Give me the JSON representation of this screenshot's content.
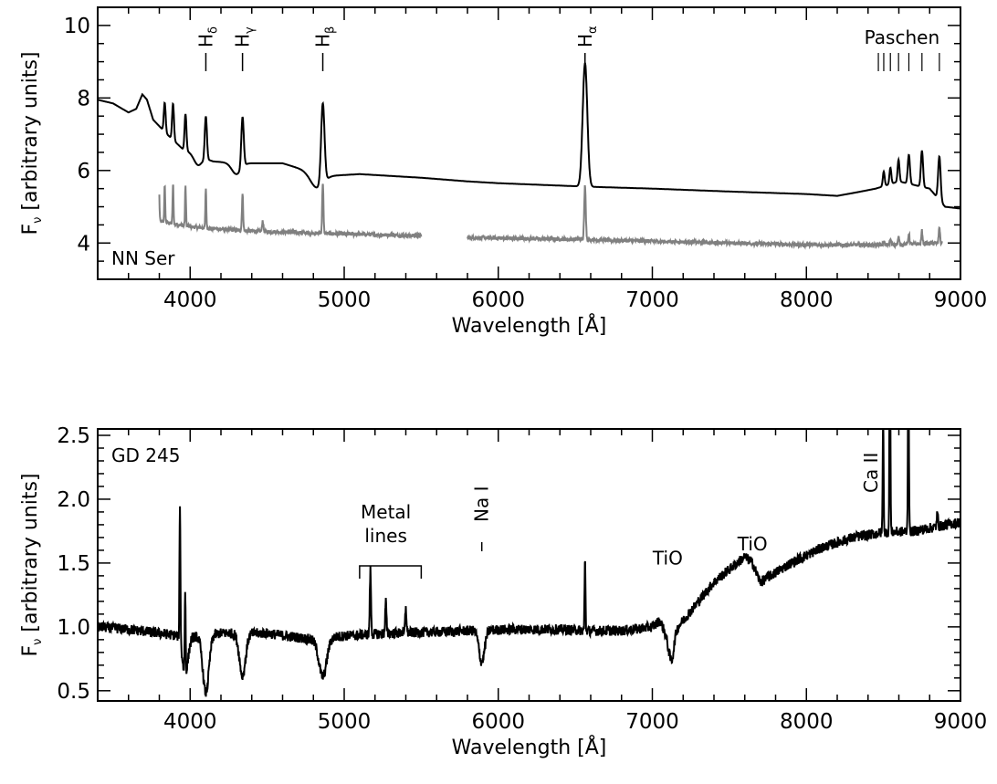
{
  "chart_data": [
    {
      "type": "line",
      "xlabel": "Wavelength [Å]",
      "ylabel_main": "F",
      "ylabel_sub": "ν",
      "ylabel_rest": " [arbitrary units]",
      "xlim": [
        3400,
        9000
      ],
      "ylim": [
        3,
        10.5
      ],
      "x_ticks": [
        4000,
        5000,
        6000,
        7000,
        8000,
        9000
      ],
      "y_ticks": [
        4,
        6,
        8,
        10
      ],
      "object_label": "NN Ser",
      "line_markers": [
        {
          "base": "H",
          "sub": "δ",
          "x": 4102
        },
        {
          "base": "H",
          "sub": "γ",
          "x": 4340
        },
        {
          "base": "H",
          "sub": "β",
          "x": 4861
        },
        {
          "base": "H",
          "sub": "α",
          "x": 6563
        }
      ],
      "series_label_paschen": "Paschen",
      "paschen_lines": [
        8467,
        8502,
        8545,
        8598,
        8665,
        8750,
        8863
      ],
      "series": [
        {
          "color": "#000000",
          "continuum": [
            [
              3400,
              7.95
            ],
            [
              3500,
              7.85
            ],
            [
              3600,
              7.6
            ],
            [
              3650,
              7.7
            ],
            [
              3690,
              8.1
            ],
            [
              3720,
              7.95
            ],
            [
              3760,
              7.4
            ],
            [
              3850,
              7.0
            ],
            [
              3950,
              6.6
            ],
            [
              4050,
              6.4
            ],
            [
              4150,
              6.25
            ],
            [
              4300,
              6.2
            ],
            [
              4450,
              6.2
            ],
            [
              4600,
              6.2
            ],
            [
              4750,
              6.0
            ],
            [
              4900,
              5.85
            ],
            [
              5100,
              5.9
            ],
            [
              5300,
              5.85
            ],
            [
              5500,
              5.8
            ],
            [
              5800,
              5.7
            ],
            [
              6000,
              5.65
            ],
            [
              6300,
              5.6
            ],
            [
              6600,
              5.55
            ],
            [
              7000,
              5.5
            ],
            [
              7500,
              5.42
            ],
            [
              8000,
              5.35
            ],
            [
              8200,
              5.3
            ],
            [
              8330,
              5.4
            ],
            [
              8450,
              5.5
            ],
            [
              8600,
              5.7
            ],
            [
              8800,
              5.5
            ],
            [
              8900,
              5.0
            ],
            [
              9000,
              4.95
            ]
          ],
          "lines": [
            [
              3835,
              0.8,
              6
            ],
            [
              3889,
              1.0,
              6
            ],
            [
              3970,
              1.0,
              6
            ],
            [
              4102,
              1.2,
              7
            ],
            [
              4340,
              1.4,
              8
            ],
            [
              4861,
              2.2,
              11
            ],
            [
              6563,
              3.4,
              15
            ],
            [
              8502,
              0.4,
              6
            ],
            [
              8545,
              0.45,
              6
            ],
            [
              8598,
              0.6,
              6
            ],
            [
              8665,
              0.8,
              7
            ],
            [
              8750,
              1.0,
              7
            ],
            [
              8863,
              1.2,
              8
            ]
          ],
          "dips": [
            [
              4050,
              0.25,
              25
            ],
            [
              4300,
              0.3,
              30
            ],
            [
              4820,
              0.4,
              40
            ]
          ]
        },
        {
          "color": "#808080",
          "segments": [
            [
              3800,
              5500
            ],
            [
              5800,
              8880
            ]
          ],
          "continuum": [
            [
              3800,
              4.6
            ],
            [
              4000,
              4.45
            ],
            [
              4300,
              4.35
            ],
            [
              4600,
              4.3
            ],
            [
              5000,
              4.25
            ],
            [
              5500,
              4.2
            ],
            [
              5800,
              4.15
            ],
            [
              6500,
              4.1
            ],
            [
              7000,
              4.05
            ],
            [
              7500,
              4.0
            ],
            [
              8000,
              3.95
            ],
            [
              8500,
              3.95
            ],
            [
              8880,
              4.0
            ]
          ],
          "lines": [
            [
              3798,
              0.9,
              3
            ],
            [
              3835,
              1.0,
              3
            ],
            [
              3889,
              1.1,
              3
            ],
            [
              3970,
              1.1,
              3
            ],
            [
              4102,
              1.1,
              3
            ],
            [
              4340,
              1.0,
              4
            ],
            [
              4471,
              0.3,
              4
            ],
            [
              4861,
              1.4,
              4
            ],
            [
              6563,
              1.5,
              5
            ],
            [
              8502,
              0.1,
              4
            ],
            [
              8545,
              0.15,
              4
            ],
            [
              8598,
              0.2,
              4
            ],
            [
              8665,
              0.3,
              4
            ],
            [
              8750,
              0.35,
              4
            ],
            [
              8863,
              0.45,
              4
            ]
          ],
          "noise_amp": 0.05
        }
      ]
    },
    {
      "type": "line",
      "xlabel": "Wavelength [Å]",
      "ylabel_main": "F",
      "ylabel_sub": "ν",
      "ylabel_rest": " [arbitrary units]",
      "xlim": [
        3400,
        9000
      ],
      "ylim": [
        0.42,
        2.55
      ],
      "x_ticks": [
        4000,
        5000,
        6000,
        7000,
        8000,
        9000
      ],
      "y_ticks": [
        0.5,
        1.0,
        1.5,
        2.0,
        2.5
      ],
      "y_tick_labels": [
        "0.5",
        "1.0",
        "1.5",
        "2.0",
        "2.5"
      ],
      "object_label": "GD 245",
      "metal_lines_label": [
        "Metal",
        "lines"
      ],
      "metal_bracket": [
        5100,
        5500
      ],
      "na_label": "Na I",
      "na_x": 5893,
      "tio_labels": [
        {
          "text": "TiO",
          "x": 7100,
          "y": 1.49
        },
        {
          "text": "TiO",
          "x": 7650,
          "y": 1.6
        }
      ],
      "ca_label": "Ca II",
      "series": [
        {
          "color": "#000000",
          "continuum": [
            [
              3400,
              1.0
            ],
            [
              3600,
              0.98
            ],
            [
              3800,
              0.95
            ],
            [
              4000,
              0.92
            ],
            [
              4200,
              0.95
            ],
            [
              4500,
              0.95
            ],
            [
              4800,
              0.9
            ],
            [
              5000,
              0.93
            ],
            [
              5300,
              0.95
            ],
            [
              5600,
              0.96
            ],
            [
              5800,
              0.97
            ],
            [
              6100,
              0.98
            ],
            [
              6400,
              0.98
            ],
            [
              6600,
              0.97
            ],
            [
              6800,
              0.97
            ],
            [
              7000,
              1.0
            ],
            [
              7050,
              1.05
            ],
            [
              7100,
              0.9
            ],
            [
              7200,
              1.05
            ],
            [
              7400,
              1.35
            ],
            [
              7600,
              1.55
            ],
            [
              7650,
              1.5
            ],
            [
              7700,
              1.35
            ],
            [
              7900,
              1.5
            ],
            [
              8100,
              1.62
            ],
            [
              8300,
              1.7
            ],
            [
              8500,
              1.74
            ],
            [
              8700,
              1.75
            ],
            [
              9000,
              1.82
            ]
          ],
          "lines": [
            [
              3934,
              1.1,
              3
            ],
            [
              3968,
              0.65,
              3
            ],
            [
              5170,
              0.5,
              4
            ],
            [
              5270,
              0.25,
              4
            ],
            [
              5400,
              0.2,
              4
            ],
            [
              6563,
              0.55,
              3
            ],
            [
              8498,
              0.9,
              3
            ],
            [
              8542,
              1.6,
              3
            ],
            [
              8662,
              1.5,
              3
            ],
            [
              8850,
              0.1,
              4
            ]
          ],
          "dips": [
            [
              3968,
              0.3,
              18
            ],
            [
              4102,
              0.45,
              20
            ],
            [
              4340,
              0.33,
              20
            ],
            [
              4861,
              0.3,
              25
            ],
            [
              5893,
              0.25,
              18
            ],
            [
              7125,
              0.2,
              15
            ]
          ],
          "noise_amp": 0.04
        }
      ]
    }
  ]
}
